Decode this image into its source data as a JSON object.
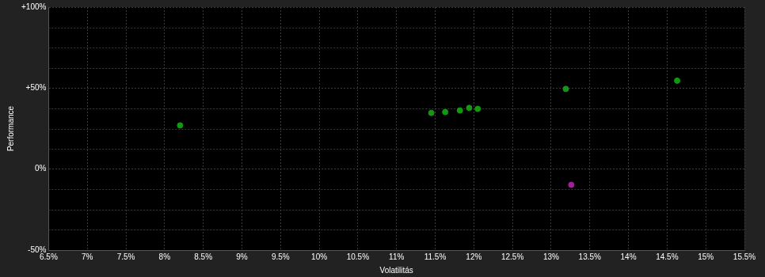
{
  "chart_data": {
    "type": "scatter",
    "x_label": "Volatilitás",
    "y_label": "Performance",
    "x": [
      8.2,
      11.45,
      11.63,
      11.82,
      11.94,
      12.05,
      13.19,
      14.63,
      13.26
    ],
    "values": [
      27.0,
      34.7,
      35.2,
      36.2,
      37.8,
      37.2,
      49.5,
      54.6,
      -9.7
    ],
    "colors": [
      "#119911",
      "#119911",
      "#119911",
      "#119911",
      "#119911",
      "#119911",
      "#119911",
      "#119911",
      "#a0209a"
    ],
    "marker": "circle",
    "xlim": [
      6.5,
      15.5
    ],
    "xticks": [
      {
        "value": 6.5,
        "label": "6.5%"
      },
      {
        "value": 7,
        "label": "7%"
      },
      {
        "value": 7.5,
        "label": "7.5%"
      },
      {
        "value": 8,
        "label": "8%"
      },
      {
        "value": 8.5,
        "label": "8.5%"
      },
      {
        "value": 9,
        "label": "9%"
      },
      {
        "value": 9.5,
        "label": "9.5%"
      },
      {
        "value": 10,
        "label": "10%"
      },
      {
        "value": 10.5,
        "label": "10.5%"
      },
      {
        "value": 11,
        "label": "11%"
      },
      {
        "value": 11.5,
        "label": "11.5%"
      },
      {
        "value": 12,
        "label": "12%"
      },
      {
        "value": 12.5,
        "label": "12.5%"
      },
      {
        "value": 13,
        "label": "13%"
      },
      {
        "value": 13.5,
        "label": "13.5%"
      },
      {
        "value": 14,
        "label": "14%"
      },
      {
        "value": 14.5,
        "label": "14.5%"
      },
      {
        "value": 15,
        "label": "15%"
      },
      {
        "value": 15.5,
        "label": "15.5%"
      }
    ],
    "ylim": [
      -50,
      100
    ],
    "yticks": [
      {
        "value": -50,
        "label": "-50%"
      },
      {
        "value": 0,
        "label": "0%"
      },
      {
        "value": 50,
        "label": "+50%"
      },
      {
        "value": 100,
        "label": "+100%"
      }
    ],
    "grid": true
  }
}
